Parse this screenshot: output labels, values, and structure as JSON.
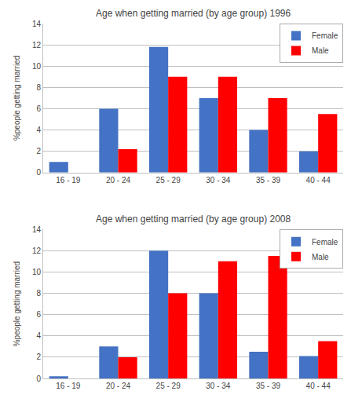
{
  "chart_data": [
    {
      "type": "bar",
      "title": "Age when getting married (by age group) 1996",
      "categories": [
        "16 - 19",
        "20 - 24",
        "25 - 29",
        "30 - 34",
        "35 - 39",
        "40 - 44"
      ],
      "series": [
        {
          "name": "Female",
          "color": "#4472C4",
          "values": [
            1,
            6,
            11.8,
            7,
            4,
            2
          ]
        },
        {
          "name": "Male",
          "color": "#FF0000",
          "values": [
            0,
            2.2,
            9,
            9,
            7,
            5.5
          ]
        }
      ],
      "ylabel": "%people getting married",
      "ylim": [
        0,
        14
      ],
      "yticks": [
        0,
        2,
        4,
        6,
        8,
        10,
        12,
        14
      ],
      "grid": true,
      "legend": "upper right"
    },
    {
      "type": "bar",
      "title": "Age when getting married (by age group) 2008",
      "categories": [
        "16 - 19",
        "20 - 24",
        "25 - 29",
        "30 - 34",
        "35 - 39",
        "40 - 44"
      ],
      "series": [
        {
          "name": "Female",
          "color": "#4472C4",
          "values": [
            0.2,
            3,
            12,
            8,
            2.5,
            2.1
          ]
        },
        {
          "name": "Male",
          "color": "#FF0000",
          "values": [
            0,
            2,
            8,
            11,
            11.5,
            3.5
          ]
        }
      ],
      "ylabel": "%people getting married",
      "ylim": [
        0,
        14
      ],
      "yticks": [
        0,
        2,
        4,
        6,
        8,
        10,
        12,
        14
      ],
      "grid": true,
      "legend": "upper right"
    }
  ]
}
